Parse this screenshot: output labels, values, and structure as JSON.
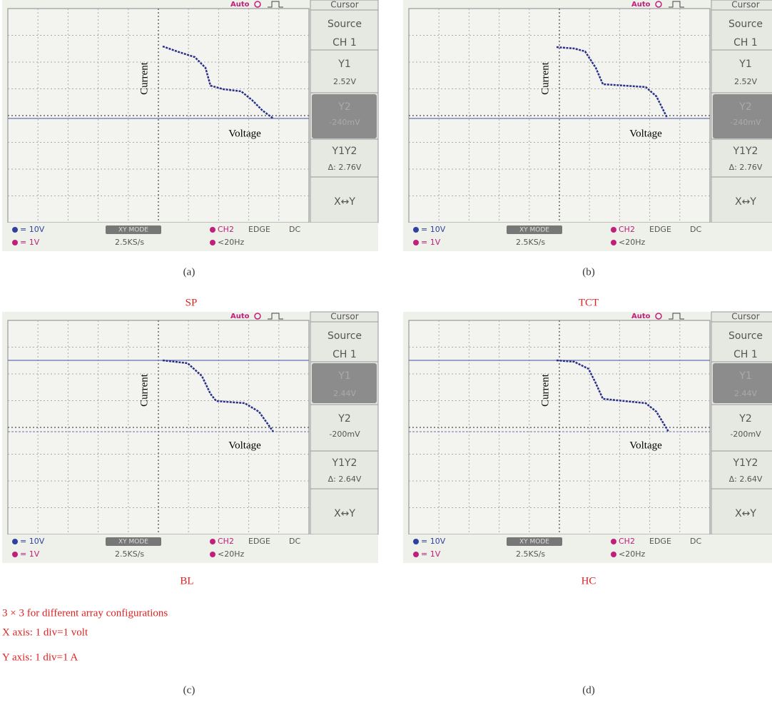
{
  "panels": [
    {
      "caption": "(a)",
      "screen": {
        "trigger": "Auto",
        "menu_title": "Cursor",
        "source_label": "Source",
        "source": "CH 1",
        "y1_label": "Y1",
        "y1": "2.52V",
        "y2_label": "Y2",
        "y2": "-240mV",
        "delta_label": "Y1Y2",
        "delta": "Δ: 2.76V",
        "swap": "X↔Y",
        "ch1_scale": "= 10V",
        "ch2_scale": "= 1V",
        "mode": "XY MODE",
        "rate": "2.5KS/s",
        "trigger_source": "CH2",
        "trigger_type": "EDGE",
        "coupling": "DC",
        "filter": "<20Hz",
        "y_axis": "Current",
        "x_axis": "Voltage"
      }
    },
    {
      "caption": "(b)",
      "screen": {
        "trigger": "Auto",
        "menu_title": "Cursor",
        "source_label": "Source",
        "source": "CH 1",
        "y1_label": "Y1",
        "y1": "2.52V",
        "y2_label": "Y2",
        "y2": "-240mV",
        "delta_label": "Y1Y2",
        "delta": "Δ: 2.76V",
        "swap": "X↔Y",
        "ch1_scale": "= 10V",
        "ch2_scale": "= 1V",
        "mode": "XY MODE",
        "rate": "2.5KS/s",
        "trigger_source": "CH2",
        "trigger_type": "EDGE",
        "coupling": "DC",
        "filter": "<20Hz",
        "y_axis": "Current",
        "x_axis": "Voltage"
      }
    },
    {
      "caption": "(c)",
      "screen": {
        "trigger": "Auto",
        "menu_title": "Cursor",
        "source_label": "Source",
        "source": "CH 1",
        "y1_label": "Y1",
        "y1": "2.44V",
        "y2_label": "Y2",
        "y2": "-200mV",
        "delta_label": "Y1Y2",
        "delta": "Δ: 2.64V",
        "swap": "X↔Y",
        "ch1_scale": "= 10V",
        "ch2_scale": "= 1V",
        "mode": "XY MODE",
        "rate": "2.5KS/s",
        "trigger_source": "CH2",
        "trigger_type": "EDGE",
        "coupling": "DC",
        "filter": "<20Hz",
        "y_axis": "Current",
        "x_axis": "Voltage"
      }
    },
    {
      "caption": "(d)",
      "screen": {
        "trigger": "Auto",
        "menu_title": "Cursor",
        "source_label": "Source",
        "source": "CH 1",
        "y1_label": "Y1",
        "y1": "2.44V",
        "y2_label": "Y2",
        "y2": "-200mV",
        "delta_label": "Y1Y2",
        "delta": "Δ: 2.64V",
        "swap": "X↔Y",
        "ch1_scale": "= 10V",
        "ch2_scale": "= 1V",
        "mode": "XY MODE",
        "rate": "2.5KS/s",
        "trigger_source": "CH2",
        "trigger_type": "EDGE",
        "coupling": "DC",
        "filter": "<20Hz",
        "y_axis": "Current",
        "x_axis": "Voltage"
      }
    }
  ],
  "config_labels": [
    "SP",
    "TCT",
    "BL",
    "HC"
  ],
  "notes": [
    "3 × 3 for different array configurations",
    "X axis: 1 div=1 volt",
    "Y axis: 1 div=1 A"
  ]
}
